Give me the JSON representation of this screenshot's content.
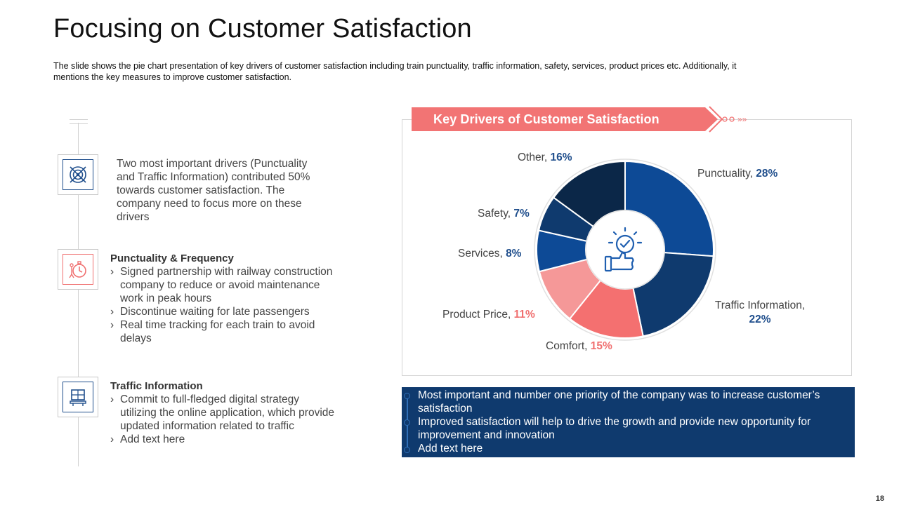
{
  "slide": {
    "title": "Focusing on Customer Satisfaction",
    "subtitle": "The slide shows the pie chart presentation of key drivers of customer satisfaction including train punctuality, traffic information, safety, services, product prices etc. Additionally, it mentions the key measures to improve customer satisfaction.",
    "page_number": "18"
  },
  "left": {
    "intro_text": "Two most important drivers (Punctuality and Traffic Information) contributed 50% towards customer satisfaction. The company need to focus more on these drivers",
    "punctuality": {
      "title": "Punctuality & Frequency",
      "bullets": [
        "Signed partnership with railway construction company to reduce or avoid maintenance work in peak hours",
        "Discontinue waiting for late passengers",
        "Real time tracking for each train to avoid delays"
      ]
    },
    "traffic": {
      "title": "Traffic Information",
      "bullets": [
        "Commit to full-fledged digital strategy utilizing the online application, which provide updated information related to traffic",
        "Add text here"
      ]
    }
  },
  "chart_data": {
    "type": "pie",
    "title": "Key Drivers of Customer Satisfaction",
    "categories": [
      "Punctuality",
      "Traffic Information",
      "Comfort",
      "Product Price",
      "Services",
      "Safety",
      "Other"
    ],
    "values": [
      28,
      22,
      15,
      11,
      8,
      7,
      16
    ],
    "value_labels": [
      "28%",
      "22%",
      "15%",
      "11%",
      "8%",
      "7%",
      "16%"
    ],
    "colors": [
      "#0d4a96",
      "#0f3a6e",
      "#f47070",
      "#f59898",
      "#0d4a96",
      "#0f3a6e",
      "#0b2748"
    ],
    "start_angle_deg": 0,
    "direction": "clockwise"
  },
  "bottom_box": {
    "items": [
      "Most important and number one priority of the company was to increase customer’s satisfaction",
      "Improved satisfaction will help to drive the growth and provide new opportunity for improvement and innovation",
      "Add text here"
    ]
  },
  "colors": {
    "accent_red": "#f07070",
    "navy": "#0f3a6e",
    "blue": "#1f4e8c"
  }
}
